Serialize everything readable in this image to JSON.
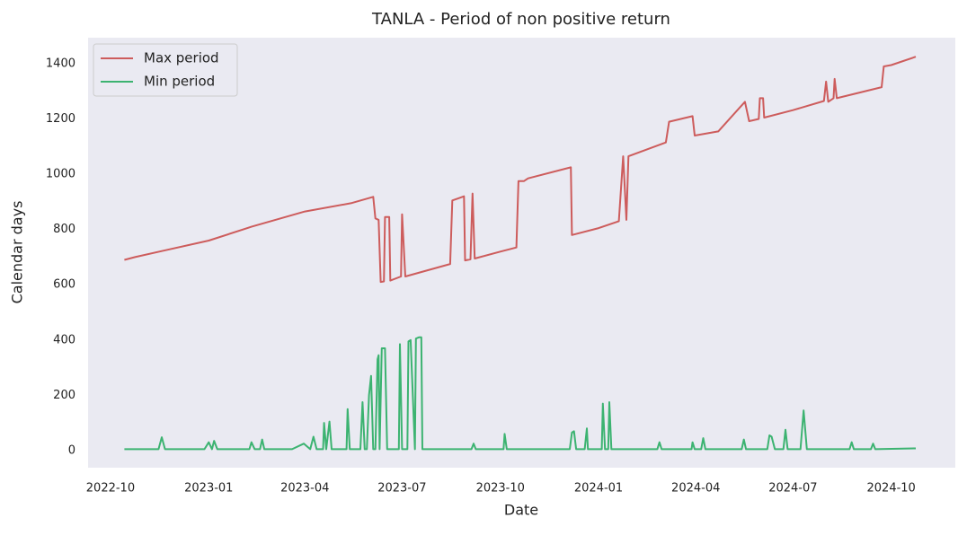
{
  "chart_data": {
    "type": "line",
    "title": "TANLA - Period of non positive return",
    "xlabel": "Date",
    "ylabel": "Calendar days",
    "xlim": [
      "2022-09-10",
      "2024-11-30"
    ],
    "ylim": [
      -62,
      1494
    ],
    "xticks": [
      "2022-10",
      "2023-01",
      "2023-04",
      "2023-07",
      "2023-10",
      "2024-01",
      "2024-04",
      "2024-07",
      "2024-10"
    ],
    "yticks": [
      0,
      200,
      400,
      600,
      800,
      1000,
      1200,
      1400
    ],
    "grid": false,
    "legend": "upper left",
    "series": [
      {
        "name": "Max period",
        "color": "#cd5c5c",
        "x": [
          "2022-10-14",
          "2022-10-24",
          "2022-11-18",
          "2023-01-01",
          "2023-02-10",
          "2023-04-01",
          "2023-05-14",
          "2023-06-04",
          "2023-06-06",
          "2023-06-09",
          "2023-06-11",
          "2023-06-14",
          "2023-06-15",
          "2023-06-19",
          "2023-06-20",
          "2023-06-30",
          "2023-07-01",
          "2023-07-04",
          "2023-08-15",
          "2023-08-17",
          "2023-08-28",
          "2023-08-29",
          "2023-09-03",
          "2023-09-05",
          "2023-09-07",
          "2023-10-01",
          "2023-10-16",
          "2023-10-18",
          "2023-10-23",
          "2023-10-27",
          "2023-12-06",
          "2023-12-07",
          "2024-01-01",
          "2024-01-20",
          "2024-01-24",
          "2024-01-27",
          "2024-01-29",
          "2024-03-04",
          "2024-03-07",
          "2024-03-29",
          "2024-03-31",
          "2024-04-22",
          "2024-05-17",
          "2024-05-21",
          "2024-05-30",
          "2024-05-31",
          "2024-06-03",
          "2024-06-04",
          "2024-07-01",
          "2024-07-30",
          "2024-08-01",
          "2024-08-03",
          "2024-08-08",
          "2024-08-09",
          "2024-08-11",
          "2024-09-22",
          "2024-09-24",
          "2024-10-01",
          "2024-10-24"
        ],
        "values": [
          690,
          700,
          722,
          760,
          810,
          865,
          895,
          918,
          840,
          835,
          610,
          612,
          845,
          845,
          615,
          630,
          855,
          630,
          675,
          905,
          920,
          688,
          692,
          930,
          695,
          720,
          735,
          975,
          975,
          985,
          1025,
          780,
          805,
          830,
          1065,
          835,
          1065,
          1115,
          1190,
          1210,
          1140,
          1155,
          1262,
          1192,
          1200,
          1275,
          1275,
          1205,
          1232,
          1265,
          1335,
          1262,
          1275,
          1345,
          1275,
          1315,
          1390,
          1395,
          1425
        ]
      },
      {
        "name": "Min period",
        "color": "#3cb371",
        "x": [
          "2022-10-14",
          "2022-11-15",
          "2022-11-18",
          "2022-11-21",
          "2022-12-28",
          "2023-01-01",
          "2023-01-04",
          "2023-01-06",
          "2023-01-09",
          "2023-02-08",
          "2023-02-10",
          "2023-02-13",
          "2023-02-18",
          "2023-02-20",
          "2023-02-22",
          "2023-03-20",
          "2023-03-31",
          "2023-04-06",
          "2023-04-09",
          "2023-04-12",
          "2023-04-18",
          "2023-04-19",
          "2023-04-21",
          "2023-04-24",
          "2023-04-26",
          "2023-05-10",
          "2023-05-11",
          "2023-05-13",
          "2023-05-23",
          "2023-05-25",
          "2023-05-27",
          "2023-05-29",
          "2023-05-31",
          "2023-06-02",
          "2023-06-04",
          "2023-06-06",
          "2023-06-08",
          "2023-06-09",
          "2023-06-10",
          "2023-06-12",
          "2023-06-15",
          "2023-06-17",
          "2023-06-28",
          "2023-06-29",
          "2023-07-01",
          "2023-07-06",
          "2023-07-07",
          "2023-07-09",
          "2023-07-13",
          "2023-07-14",
          "2023-07-17",
          "2023-07-19",
          "2023-07-20",
          "2023-09-04",
          "2023-09-06",
          "2023-09-08",
          "2023-10-04",
          "2023-10-05",
          "2023-10-07",
          "2023-12-05",
          "2023-12-07",
          "2023-12-09",
          "2023-12-11",
          "2023-12-19",
          "2023-12-21",
          "2023-12-22",
          "2024-01-04",
          "2024-01-05",
          "2024-01-07",
          "2024-01-10",
          "2024-01-11",
          "2024-01-13",
          "2024-02-25",
          "2024-02-27",
          "2024-02-29",
          "2024-03-28",
          "2024-03-29",
          "2024-03-31",
          "2024-04-06",
          "2024-04-08",
          "2024-04-10",
          "2024-05-14",
          "2024-05-16",
          "2024-05-18",
          "2024-06-07",
          "2024-06-09",
          "2024-06-11",
          "2024-06-14",
          "2024-06-22",
          "2024-06-24",
          "2024-06-26",
          "2024-07-08",
          "2024-07-11",
          "2024-07-14",
          "2024-08-23",
          "2024-08-25",
          "2024-08-27",
          "2024-09-12",
          "2024-09-14",
          "2024-09-16",
          "2024-10-24"
        ],
        "values": [
          5,
          5,
          48,
          5,
          5,
          30,
          5,
          35,
          5,
          5,
          30,
          5,
          5,
          40,
          5,
          5,
          25,
          5,
          50,
          5,
          5,
          100,
          5,
          105,
          5,
          5,
          150,
          5,
          5,
          175,
          5,
          5,
          200,
          270,
          5,
          5,
          330,
          345,
          5,
          370,
          370,
          5,
          5,
          385,
          5,
          5,
          395,
          400,
          5,
          405,
          410,
          410,
          5,
          5,
          25,
          5,
          5,
          60,
          5,
          5,
          65,
          70,
          5,
          5,
          80,
          5,
          5,
          170,
          5,
          5,
          175,
          5,
          5,
          30,
          5,
          5,
          30,
          5,
          5,
          45,
          5,
          5,
          40,
          5,
          5,
          55,
          50,
          5,
          5,
          75,
          5,
          5,
          145,
          5,
          5,
          30,
          5,
          5,
          25,
          5,
          8
        ]
      }
    ]
  }
}
